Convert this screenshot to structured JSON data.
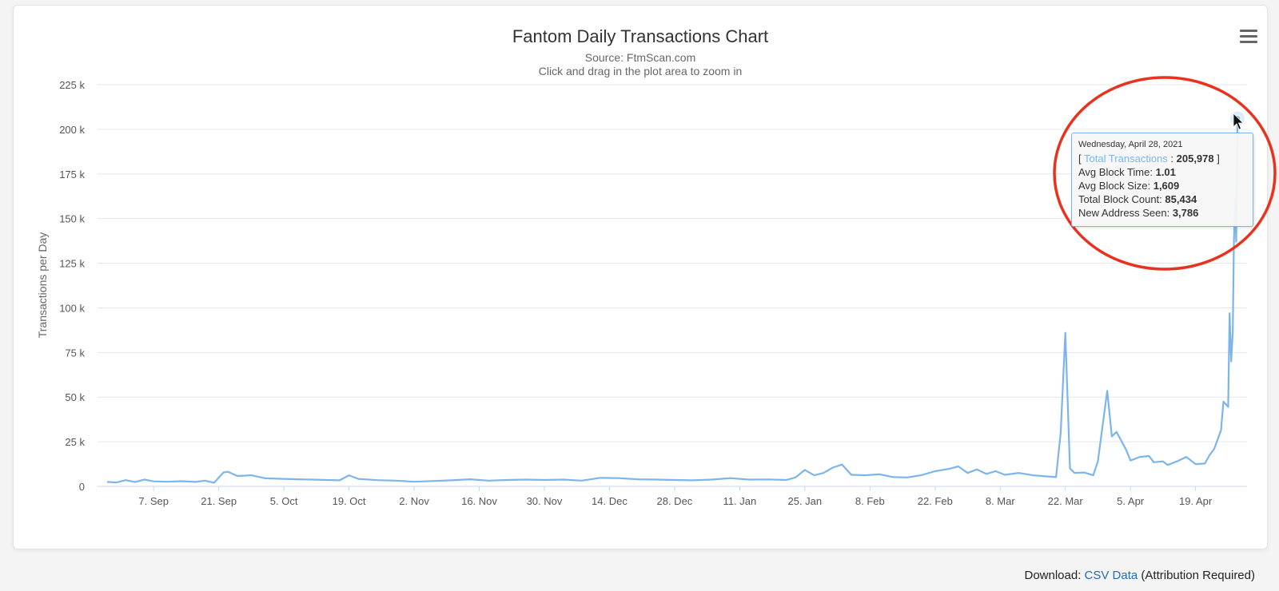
{
  "chart_data": {
    "type": "line",
    "title": "Fantom Daily Transactions Chart",
    "subtitle_source": "Source: FtmScan.com",
    "subtitle_hint": "Click and drag in the plot area to zoom in",
    "ylabel": "Transactions per Day",
    "ylim": [
      0,
      225000
    ],
    "y_ticks": [
      "0",
      "25 k",
      "50 k",
      "75 k",
      "100 k",
      "125 k",
      "150 k",
      "175 k",
      "200 k",
      "225 k"
    ],
    "x_ticks": [
      "7. Sep",
      "21. Sep",
      "5. Oct",
      "19. Oct",
      "2. Nov",
      "16. Nov",
      "30. Nov",
      "14. Dec",
      "28. Dec",
      "11. Jan",
      "25. Jan",
      "8. Feb",
      "22. Feb",
      "8. Mar",
      "22. Mar",
      "5. Apr",
      "19. Apr"
    ],
    "x_start": "2020-08-28",
    "x_end": "2021-04-28",
    "grid": true,
    "series": [
      {
        "name": "Total Transactions",
        "color": "#7cb5ec",
        "points": [
          [
            "2020-08-28",
            2500
          ],
          [
            "2020-08-30",
            2200
          ],
          [
            "2020-09-01",
            3500
          ],
          [
            "2020-09-03",
            2400
          ],
          [
            "2020-09-05",
            3800
          ],
          [
            "2020-09-07",
            2800
          ],
          [
            "2020-09-10",
            2600
          ],
          [
            "2020-09-13",
            2900
          ],
          [
            "2020-09-16",
            2500
          ],
          [
            "2020-09-18",
            3200
          ],
          [
            "2020-09-20",
            2000
          ],
          [
            "2020-09-22",
            7800
          ],
          [
            "2020-09-23",
            8200
          ],
          [
            "2020-09-25",
            5800
          ],
          [
            "2020-09-28",
            6200
          ],
          [
            "2020-10-01",
            4500
          ],
          [
            "2020-10-05",
            4200
          ],
          [
            "2020-10-08",
            4000
          ],
          [
            "2020-10-11",
            3800
          ],
          [
            "2020-10-14",
            3600
          ],
          [
            "2020-10-17",
            3400
          ],
          [
            "2020-10-19",
            6200
          ],
          [
            "2020-10-21",
            4200
          ],
          [
            "2020-10-25",
            3500
          ],
          [
            "2020-10-29",
            3200
          ],
          [
            "2020-11-02",
            2600
          ],
          [
            "2020-11-06",
            3000
          ],
          [
            "2020-11-10",
            3400
          ],
          [
            "2020-11-14",
            4000
          ],
          [
            "2020-11-18",
            3200
          ],
          [
            "2020-11-22",
            3600
          ],
          [
            "2020-11-26",
            3800
          ],
          [
            "2020-11-30",
            3600
          ],
          [
            "2020-12-04",
            3800
          ],
          [
            "2020-12-08",
            3200
          ],
          [
            "2020-12-12",
            4800
          ],
          [
            "2020-12-16",
            4600
          ],
          [
            "2020-12-20",
            4000
          ],
          [
            "2020-12-24",
            3800
          ],
          [
            "2020-12-28",
            3600
          ],
          [
            "2021-01-01",
            3400
          ],
          [
            "2021-01-05",
            3800
          ],
          [
            "2021-01-09",
            4600
          ],
          [
            "2021-01-13",
            3800
          ],
          [
            "2021-01-17",
            3900
          ],
          [
            "2021-01-21",
            3600
          ],
          [
            "2021-01-23",
            5000
          ],
          [
            "2021-01-25",
            9200
          ],
          [
            "2021-01-27",
            6200
          ],
          [
            "2021-01-29",
            7500
          ],
          [
            "2021-01-31",
            10500
          ],
          [
            "2021-02-02",
            12200
          ],
          [
            "2021-02-04",
            6500
          ],
          [
            "2021-02-07",
            6200
          ],
          [
            "2021-02-10",
            6800
          ],
          [
            "2021-02-13",
            5200
          ],
          [
            "2021-02-16",
            5000
          ],
          [
            "2021-02-19",
            6200
          ],
          [
            "2021-02-22",
            8500
          ],
          [
            "2021-02-25",
            9800
          ],
          [
            "2021-02-27",
            11200
          ],
          [
            "2021-03-01",
            7500
          ],
          [
            "2021-03-03",
            9500
          ],
          [
            "2021-03-05",
            7000
          ],
          [
            "2021-03-07",
            8500
          ],
          [
            "2021-03-09",
            6500
          ],
          [
            "2021-03-12",
            7500
          ],
          [
            "2021-03-15",
            6200
          ],
          [
            "2021-03-18",
            5600
          ],
          [
            "2021-03-20",
            5200
          ],
          [
            "2021-03-21",
            30000
          ],
          [
            "2021-03-22",
            86000
          ],
          [
            "2021-03-23",
            10000
          ],
          [
            "2021-03-24",
            7500
          ],
          [
            "2021-03-26",
            7800
          ],
          [
            "2021-03-28",
            6200
          ],
          [
            "2021-03-29",
            14000
          ],
          [
            "2021-03-31",
            53500
          ],
          [
            "2021-04-01",
            28000
          ],
          [
            "2021-04-02",
            30500
          ],
          [
            "2021-04-04",
            21000
          ],
          [
            "2021-04-05",
            14500
          ],
          [
            "2021-04-07",
            16500
          ],
          [
            "2021-04-09",
            17000
          ],
          [
            "2021-04-10",
            13500
          ],
          [
            "2021-04-12",
            14000
          ],
          [
            "2021-04-13",
            12000
          ],
          [
            "2021-04-15",
            14000
          ],
          [
            "2021-04-17",
            16500
          ],
          [
            "2021-04-19",
            12500
          ],
          [
            "2021-04-21",
            12800
          ],
          [
            "2021-04-22",
            17500
          ],
          [
            "2021-04-23",
            21000
          ],
          [
            "2021-04-24",
            28000
          ],
          [
            "2021-04-25",
            31500
          ],
          [
            "2021-04-25",
            47500
          ],
          [
            "2021-04-26",
            44500
          ],
          [
            "2021-04-27",
            97000
          ],
          [
            "2021-04-27",
            70000
          ],
          [
            "2021-04-27",
            87000
          ],
          [
            "2021-04-28",
            135000
          ],
          [
            "2021-04-28",
            161000
          ],
          [
            "2021-04-28",
            137000
          ],
          [
            "2021-04-28",
            205978
          ]
        ]
      }
    ],
    "tooltip": {
      "date": "Wednesday, April 28, 2021",
      "series_label": "Total Transactions",
      "value": "205,978",
      "rows": [
        {
          "label": "Avg Block Time:",
          "value": "1.01"
        },
        {
          "label": "Avg Block Size:",
          "value": "1,609"
        },
        {
          "label": "Total Block Count:",
          "value": "85,434"
        },
        {
          "label": "New Address Seen:",
          "value": "3,786"
        }
      ]
    }
  },
  "footer": {
    "download_label": "Download:",
    "csv_link": "CSV Data",
    "attribution": "(Attribution Required)"
  },
  "colors": {
    "line": "#7cb5ec",
    "highlight_circle": "#e8321e",
    "grid": "#e6e6e6"
  }
}
